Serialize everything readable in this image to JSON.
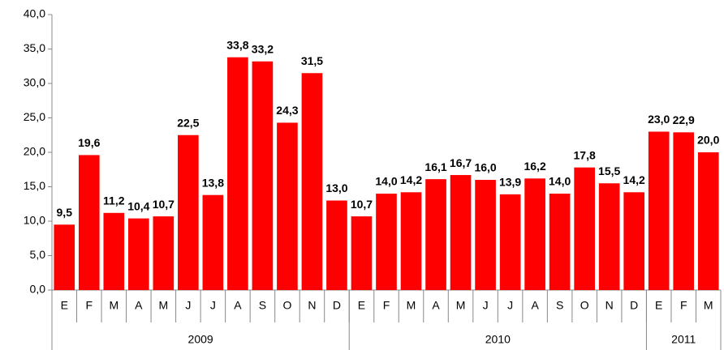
{
  "chart_data": {
    "type": "bar",
    "categories": [
      "E",
      "F",
      "M",
      "A",
      "M",
      "J",
      "J",
      "A",
      "S",
      "O",
      "N",
      "D",
      "E",
      "F",
      "M",
      "A",
      "M",
      "J",
      "J",
      "A",
      "S",
      "O",
      "N",
      "D",
      "E",
      "F",
      "M"
    ],
    "values": [
      9.5,
      19.6,
      11.2,
      10.4,
      10.7,
      22.5,
      13.8,
      33.8,
      33.2,
      24.3,
      31.5,
      13.0,
      10.7,
      14.0,
      14.2,
      16.1,
      16.7,
      16.0,
      13.9,
      16.2,
      14.0,
      17.8,
      15.5,
      14.2,
      23.0,
      22.9,
      20.0
    ],
    "value_labels": [
      "9,5",
      "19,6",
      "11,2",
      "10,4",
      "10,7",
      "22,5",
      "13,8",
      "33,8",
      "33,2",
      "24,3",
      "31,5",
      "13,0",
      "10,7",
      "14,0",
      "14,2",
      "16,1",
      "16,7",
      "16,0",
      "13,9",
      "16,2",
      "14,0",
      "17,8",
      "15,5",
      "14,2",
      "23,0",
      "22,9",
      "20,0"
    ],
    "groups": [
      {
        "label": "2009",
        "count": 12
      },
      {
        "label": "2010",
        "count": 12
      },
      {
        "label": "2011",
        "count": 3
      }
    ],
    "color": "#ff0000",
    "ylim": [
      0,
      40
    ],
    "yticks": [
      {
        "value": 0,
        "label": "0,0"
      },
      {
        "value": 5,
        "label": "5,0"
      },
      {
        "value": 10,
        "label": "10,0"
      },
      {
        "value": 15,
        "label": "15,0"
      },
      {
        "value": 20,
        "label": "20,0"
      },
      {
        "value": 25,
        "label": "25,0"
      },
      {
        "value": 30,
        "label": "30,0"
      },
      {
        "value": 35,
        "label": "35,0"
      },
      {
        "value": 40,
        "label": "40,0"
      }
    ],
    "grid": false
  }
}
